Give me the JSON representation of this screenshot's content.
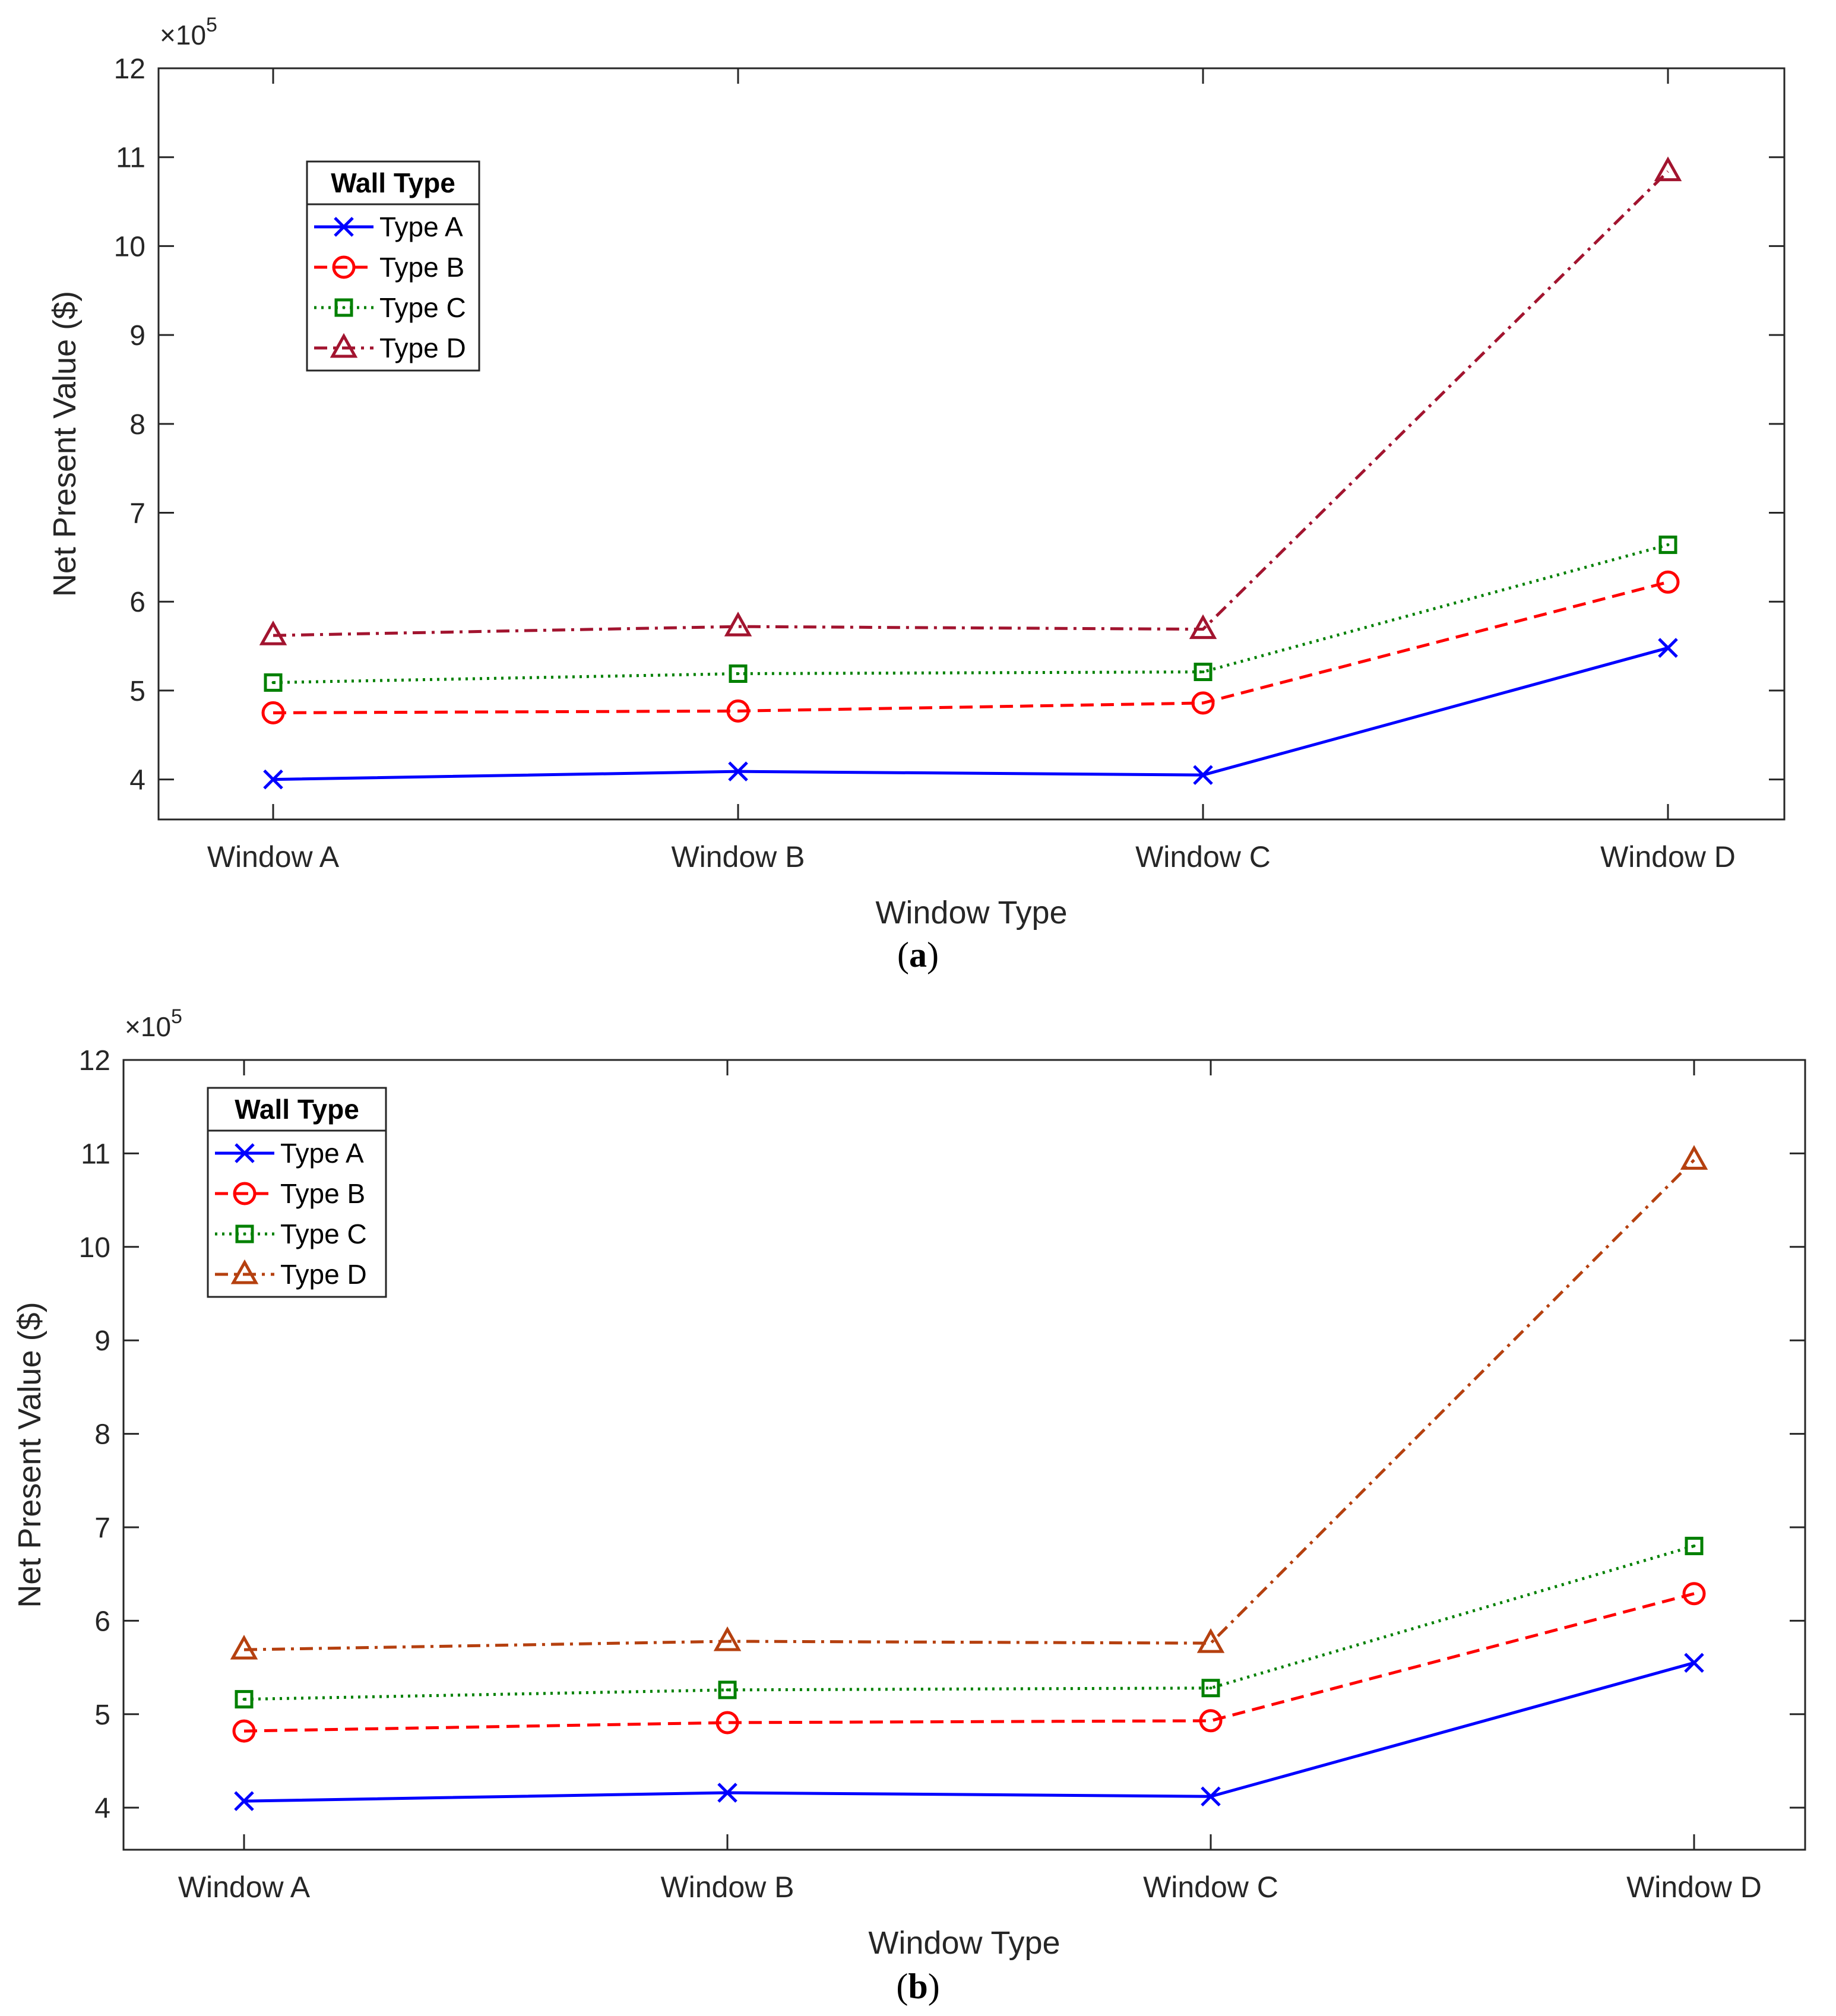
{
  "chart_data": [
    {
      "type": "line",
      "panel_label": "a",
      "title": "",
      "xlabel": "Window Type",
      "ylabel": "Net Present Value ($)",
      "y_multiplier_base": "×10",
      "y_multiplier_exponent": "5",
      "categories": [
        "Window A",
        "Window B",
        "Window C",
        "Window D"
      ],
      "ylim": [
        3.55,
        12
      ],
      "yticks": [
        4,
        5,
        6,
        7,
        8,
        9,
        10,
        11,
        12
      ],
      "grid": false,
      "legend": {
        "title": "Wall Type",
        "placement": "upper-left"
      },
      "series": [
        {
          "name": "Type A",
          "color": "#0000ff",
          "marker": "x",
          "dash": "solid",
          "values": [
            4.0,
            4.09,
            4.05,
            5.48
          ]
        },
        {
          "name": "Type B",
          "color": "#ff0000",
          "marker": "circle",
          "dash": "dashed",
          "values": [
            4.75,
            4.77,
            4.86,
            6.22
          ]
        },
        {
          "name": "Type C",
          "color": "#008000",
          "marker": "square",
          "dash": "dotted",
          "values": [
            5.09,
            5.19,
            5.21,
            6.64
          ]
        },
        {
          "name": "Type D",
          "color": "#a2142f",
          "marker": "triangle",
          "dash": "dashdot",
          "values": [
            5.62,
            5.72,
            5.69,
            10.84
          ]
        }
      ]
    },
    {
      "type": "line",
      "panel_label": "b",
      "title": "",
      "xlabel": "Window Type",
      "ylabel": "Net Present Value ($)",
      "y_multiplier_base": "×10",
      "y_multiplier_exponent": "5",
      "categories": [
        "Window A",
        "Window B",
        "Window C",
        "Window D"
      ],
      "ylim": [
        3.55,
        12
      ],
      "yticks": [
        4,
        5,
        6,
        7,
        8,
        9,
        10,
        11,
        12
      ],
      "grid": false,
      "legend": {
        "title": "Wall Type",
        "placement": "upper-left"
      },
      "series": [
        {
          "name": "Type A",
          "color": "#0000ff",
          "marker": "x",
          "dash": "solid",
          "values": [
            4.07,
            4.16,
            4.12,
            5.55
          ]
        },
        {
          "name": "Type B",
          "color": "#ff0000",
          "marker": "circle",
          "dash": "dashed",
          "values": [
            4.82,
            4.91,
            4.93,
            6.29
          ]
        },
        {
          "name": "Type C",
          "color": "#008000",
          "marker": "square",
          "dash": "dotted",
          "values": [
            5.16,
            5.26,
            5.28,
            6.8
          ]
        },
        {
          "name": "Type D",
          "color": "#b5400f",
          "marker": "triangle",
          "dash": "dashdot",
          "values": [
            5.69,
            5.78,
            5.76,
            10.93
          ]
        }
      ]
    }
  ]
}
